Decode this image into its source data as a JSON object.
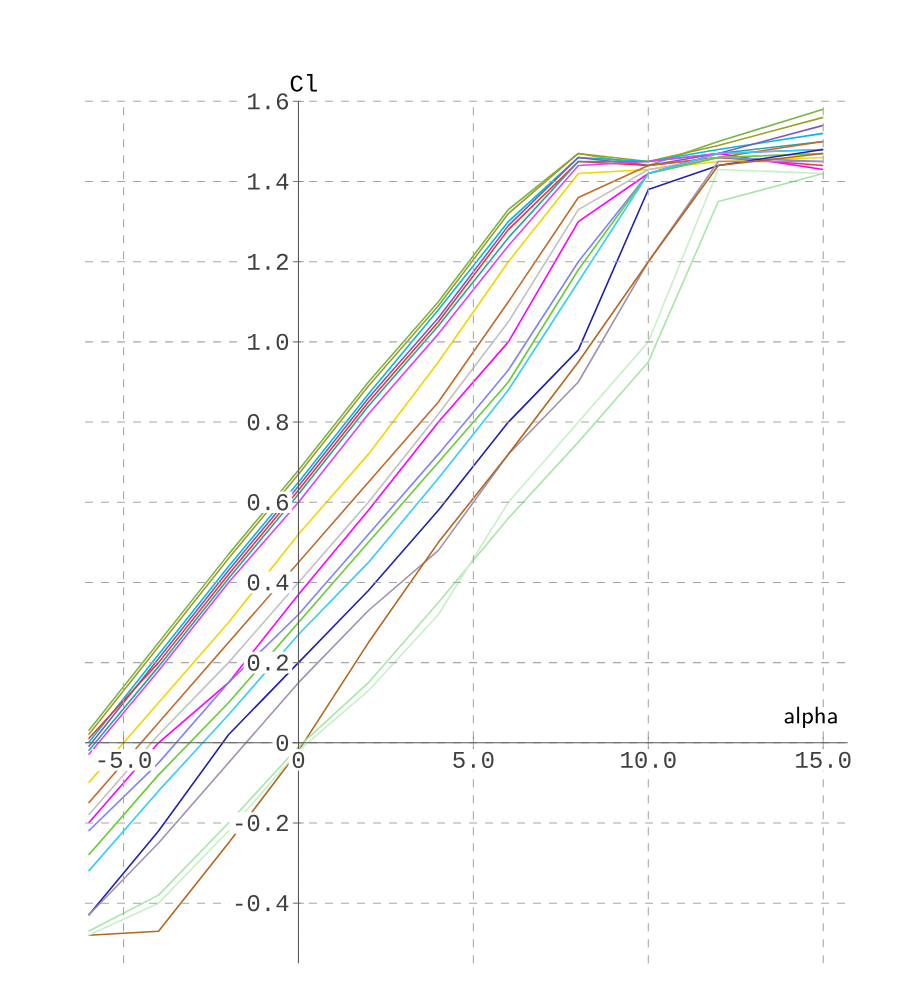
{
  "chart_data": {
    "type": "line",
    "xlabel": "alpha",
    "ylabel": "Cl",
    "grid": true,
    "xlim": [
      -6.1,
      15.7
    ],
    "ylim": [
      -0.55,
      1.6
    ],
    "xticks": [
      {
        "value": -5,
        "label": "-5.0"
      },
      0,
      {
        "value": 5,
        "label": "5.0"
      },
      {
        "value": 10,
        "label": "10.0"
      },
      {
        "value": 15,
        "label": "15.0"
      }
    ],
    "yticks": [
      -0.4,
      -0.2,
      0,
      0.2,
      0.4,
      0.6,
      0.8,
      {
        "value": 1,
        "label": "1.0"
      },
      1.2,
      1.4,
      1.6
    ],
    "x": [
      -6,
      -4,
      -2,
      0,
      2,
      4,
      6,
      8,
      10,
      12,
      15
    ],
    "series": [
      {
        "color": "#7cb342",
        "values": [
          0.03,
          0.25,
          0.47,
          0.68,
          0.9,
          1.1,
          1.33,
          1.47,
          1.44,
          1.5,
          1.58
        ]
      },
      {
        "color": "#9e9d24",
        "values": [
          0.02,
          0.24,
          0.46,
          0.67,
          0.89,
          1.09,
          1.32,
          1.47,
          1.45,
          1.49,
          1.56
        ]
      },
      {
        "color": "#00bcd4",
        "values": [
          0.0,
          0.22,
          0.44,
          0.65,
          0.87,
          1.08,
          1.3,
          1.46,
          1.45,
          1.48,
          1.52
        ]
      },
      {
        "color": "#7e57c2",
        "values": [
          -0.01,
          0.21,
          0.43,
          0.64,
          0.86,
          1.06,
          1.29,
          1.46,
          1.44,
          1.47,
          1.54
        ]
      },
      {
        "color": "#e53935",
        "values": [
          0.01,
          0.2,
          0.42,
          0.63,
          0.85,
          1.05,
          1.28,
          1.45,
          1.44,
          1.46,
          1.44
        ]
      },
      {
        "color": "#26a69a",
        "values": [
          -0.02,
          0.19,
          0.41,
          0.62,
          0.84,
          1.04,
          1.26,
          1.45,
          1.45,
          1.47,
          1.5
        ]
      },
      {
        "color": "#e040fb",
        "values": [
          -0.03,
          0.18,
          0.4,
          0.6,
          0.82,
          1.02,
          1.24,
          1.44,
          1.45,
          1.47,
          1.48
        ]
      },
      {
        "color": "#f2d600",
        "values": [
          -0.1,
          0.1,
          0.3,
          0.52,
          0.72,
          0.95,
          1.2,
          1.42,
          1.43,
          1.45,
          1.46
        ]
      },
      {
        "color": "#c06a2b",
        "values": [
          -0.15,
          0.05,
          0.25,
          0.45,
          0.65,
          0.85,
          1.1,
          1.36,
          1.44,
          1.46,
          1.5
        ]
      },
      {
        "color": "#c0c0c0",
        "values": [
          -0.18,
          0.02,
          0.2,
          0.4,
          0.6,
          0.82,
          1.05,
          1.33,
          1.43,
          1.46,
          1.47
        ]
      },
      {
        "color": "#ff00ff",
        "values": [
          -0.2,
          0.0,
          0.15,
          0.37,
          0.58,
          0.8,
          1.0,
          1.3,
          1.42,
          1.47,
          1.43
        ]
      },
      {
        "color": "#8080ff",
        "values": [
          -0.22,
          -0.05,
          0.15,
          0.32,
          0.52,
          0.72,
          0.93,
          1.2,
          1.42,
          1.46,
          1.45
        ]
      },
      {
        "color": "#66cc33",
        "values": [
          -0.28,
          -0.08,
          0.1,
          0.3,
          0.5,
          0.7,
          0.9,
          1.18,
          1.42,
          1.46,
          1.47
        ]
      },
      {
        "color": "#33ccff",
        "values": [
          -0.32,
          -0.12,
          0.07,
          0.27,
          0.45,
          0.66,
          0.88,
          1.15,
          1.42,
          1.47,
          1.48
        ]
      },
      {
        "color": "#2020b0",
        "values": [
          -0.43,
          -0.22,
          0.02,
          0.2,
          0.38,
          0.58,
          0.8,
          0.98,
          1.38,
          1.44,
          1.48
        ]
      },
      {
        "color": "#a090b0",
        "values": [
          -0.43,
          -0.25,
          -0.05,
          0.15,
          0.33,
          0.48,
          0.72,
          0.9,
          1.2,
          1.45,
          1.45
        ]
      },
      {
        "color": "#b5651d",
        "values": [
          -0.48,
          -0.47,
          -0.25,
          -0.02,
          0.25,
          0.5,
          0.72,
          0.95,
          1.2,
          1.44,
          1.47
        ]
      },
      {
        "color": "#a8e6a8",
        "values": [
          -0.47,
          -0.38,
          -0.2,
          -0.01,
          0.15,
          0.35,
          0.56,
          0.75,
          0.95,
          1.35,
          1.42
        ]
      },
      {
        "color": "#c8f0c8",
        "values": [
          -0.48,
          -0.4,
          -0.22,
          -0.02,
          0.13,
          0.32,
          0.6,
          0.8,
          1.0,
          1.43,
          1.42
        ]
      }
    ]
  }
}
